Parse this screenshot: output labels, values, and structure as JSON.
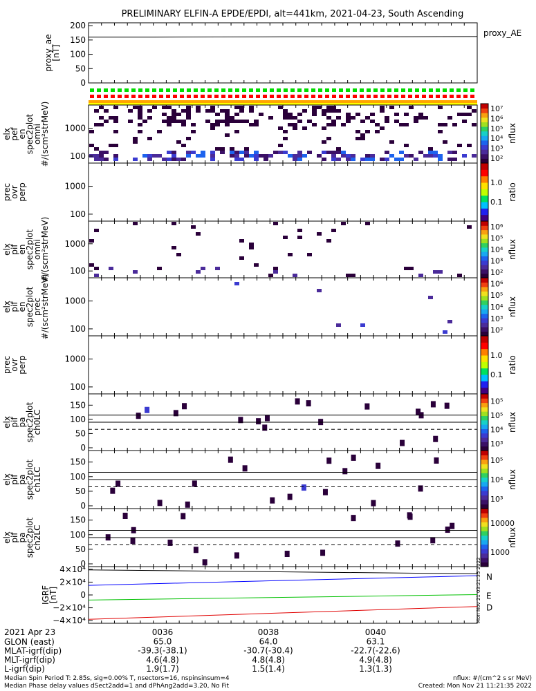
{
  "title": "PRELIMINARY ELFIN-A EPDE/EPDI, alt=441km, 2021-04-23, South Ascending",
  "chart_data": [
    {
      "type": "line",
      "id": "proxy_ae",
      "ylabel": [
        "proxy_ae",
        "[nT]"
      ],
      "legend": "proxy_AE",
      "yticks": [
        "0",
        "50",
        "100",
        "150",
        "200"
      ],
      "ylim": [
        0,
        210
      ],
      "values": [
        160,
        160,
        160.5,
        161,
        161,
        161.5,
        162
      ]
    },
    {
      "type": "heatmap",
      "id": "elx_pef_en",
      "ylabel": [
        "elx",
        "pef",
        "en",
        "spec2plot",
        "omni",
        "#/(scm²strMeV)"
      ],
      "yticks": [
        "100",
        "1000"
      ],
      "colorbar": {
        "label": "nflux",
        "ticks": [
          "10²",
          "10³",
          "10⁴",
          "10⁵",
          "10⁶",
          "10⁷"
        ]
      }
    },
    {
      "type": "heatmap",
      "id": "prec_ovr_perp_e",
      "ylabel": [
        "prec",
        "ovr",
        "perp"
      ],
      "yticks": [
        "100",
        "1000"
      ],
      "colorbar": {
        "label": "ratio",
        "ticks": [
          "0.1",
          "1.0"
        ]
      }
    },
    {
      "type": "heatmap",
      "id": "elx_pif_en_omni",
      "ylabel": [
        "elx",
        "pif",
        "en",
        "spec2plot",
        "omni",
        "#/(scm²strMeV)"
      ],
      "yticks": [
        "100",
        "1000"
      ],
      "colorbar": {
        "label": "nflux",
        "ticks": [
          "10²",
          "10³",
          "10⁴",
          "10⁵",
          "10⁶"
        ]
      }
    },
    {
      "type": "heatmap",
      "id": "elx_pif_en_prec",
      "ylabel": [
        "elx",
        "pif",
        "en",
        "spec2plot",
        "prec",
        "#/(scm²strMeV)"
      ],
      "yticks": [
        "100",
        "1000"
      ],
      "colorbar": {
        "label": "nflux",
        "ticks": [
          "10²",
          "10³",
          "10⁴",
          "10⁵",
          "10⁶"
        ]
      }
    },
    {
      "type": "heatmap",
      "id": "prec_ovr_perp_i",
      "ylabel": [
        "prec",
        "ovr",
        "perp"
      ],
      "yticks": [
        "100",
        "1000"
      ],
      "colorbar": {
        "label": "ratio",
        "ticks": [
          "0.1",
          "1.0"
        ]
      }
    },
    {
      "type": "heatmap",
      "id": "pa_ch0",
      "ylabel": [
        "elx",
        "pif",
        "pa",
        "spec2plot",
        "ch0LC"
      ],
      "yticks": [
        "0",
        "50",
        "100",
        "150"
      ],
      "colorbar": {
        "label": "nflux",
        "ticks": [
          "10³",
          "10⁴",
          "10⁵",
          "10⁵"
        ]
      }
    },
    {
      "type": "heatmap",
      "id": "pa_ch1",
      "ylabel": [
        "elx",
        "pif",
        "pa",
        "spec2plot",
        "ch1LC"
      ],
      "yticks": [
        "0",
        "50",
        "100",
        "150"
      ],
      "colorbar": {
        "label": "nflux",
        "ticks": [
          "10³",
          "10⁴",
          "10⁵"
        ]
      }
    },
    {
      "type": "heatmap",
      "id": "pa_ch2",
      "ylabel": [
        "elx",
        "pif",
        "pa",
        "spec2plot",
        "ch2LC"
      ],
      "yticks": [
        "0",
        "50",
        "100",
        "150"
      ],
      "colorbar": {
        "label": "nflux",
        "ticks": [
          "1000",
          "10000"
        ]
      }
    },
    {
      "type": "line",
      "id": "igrf",
      "ylabel": [
        "IGRF",
        "[nT]"
      ],
      "yticks": [
        "−4×10⁴",
        "−2×10⁴",
        "0",
        "2×10⁴",
        "4×10⁴"
      ],
      "ylim": [
        -42000,
        42000
      ],
      "series": [
        {
          "name": "N",
          "color": "#0000ff",
          "values": [
            15000,
            30000
          ]
        },
        {
          "name": "E",
          "color": "#00c000",
          "values": [
            -8000,
            500
          ]
        },
        {
          "name": "D",
          "color": "#e00000",
          "values": [
            -38000,
            -18000
          ]
        }
      ],
      "extra_black": [
        39000,
        33000
      ],
      "vertical_note": "Mon Nov 21 03:21:35 2022"
    }
  ],
  "xaxis": {
    "rows": [
      {
        "label": "2021 Apr 23",
        "values": [
          "0036",
          "0038",
          "0040"
        ]
      },
      {
        "label": "GLON (east)",
        "values": [
          "65.0",
          "64.0",
          "63.1"
        ]
      },
      {
        "label": "MLAT-igrf(dip)",
        "values": [
          "-39.3(-38.1)",
          "-30.7(-30.4)",
          "-22.7(-22.6)"
        ]
      },
      {
        "label": "MLT-igrf(dip)",
        "values": [
          "4.6(4.8)",
          "4.8(4.8)",
          "4.9(4.8)"
        ]
      },
      {
        "label": "L-igrf(dip)",
        "values": [
          "1.9(1.7)",
          "1.5(1.4)",
          "1.3(1.3)"
        ]
      }
    ]
  },
  "footer": {
    "line1": "Median Spin Period T: 2.85s, sig=0.00% T, nsectors=16, nspinsinsum=4",
    "line2": "Median Phase delay values dSect2add=1 and dPhAng2add=3.20, No Fit",
    "right1": "nflux: #/(cm^2 s sr MeV)",
    "right2": "Created: Mon Nov 21 11:21:35 2022"
  },
  "colors": {
    "axis": "#000000",
    "orange": "#ffa500",
    "yellow": "#ffff00",
    "green": "#00dd00",
    "red": "#ff0000"
  }
}
